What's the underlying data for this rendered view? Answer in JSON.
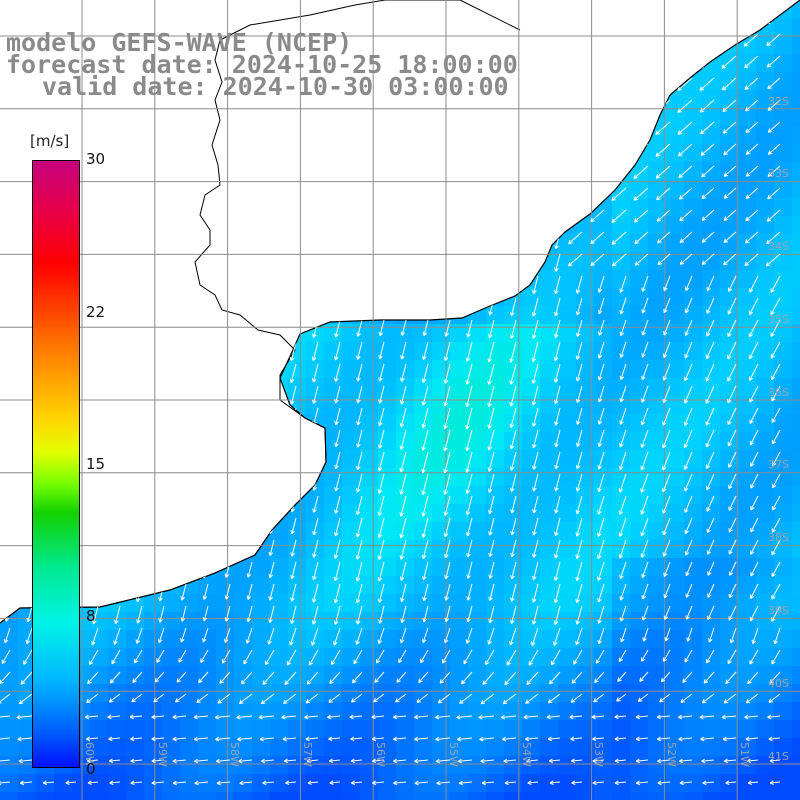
{
  "title": {
    "line1": "modelo GEFS-WAVE (NCEP)",
    "line2": "forecast date: 2024-10-25 18:00:00",
    "line3": "valid date: 2024-10-30 03:00:00"
  },
  "colorbar": {
    "unit": "[m/s]",
    "ticks": [
      "30",
      "22",
      "15",
      "8",
      "0"
    ],
    "tick_values": [
      30,
      22,
      15,
      8,
      0
    ],
    "colors": [
      "#c7007d",
      "#ff0000",
      "#ffd800",
      "#12d200",
      "#00f4e6",
      "#0010ff"
    ]
  },
  "latitude_labels": [
    "32S",
    "33S",
    "34S",
    "35S",
    "36S",
    "37S",
    "38S",
    "39S",
    "40S",
    "41S"
  ],
  "longitude_labels": [
    "60W",
    "59W",
    "58W",
    "57W",
    "56W",
    "55W",
    "54W",
    "53W",
    "52W",
    "51W"
  ],
  "colors": {
    "land": "#ffffff",
    "coastline": "#000000",
    "graticule": "#8c8c8c",
    "arrows": "#ffffff",
    "label_text": "#8a8a8a"
  },
  "wind": {
    "units": "m/s",
    "typical_speed_range": [
      3,
      9
    ],
    "dominant_direction": "toward south-southwest",
    "south_edge_direction": "toward west"
  }
}
